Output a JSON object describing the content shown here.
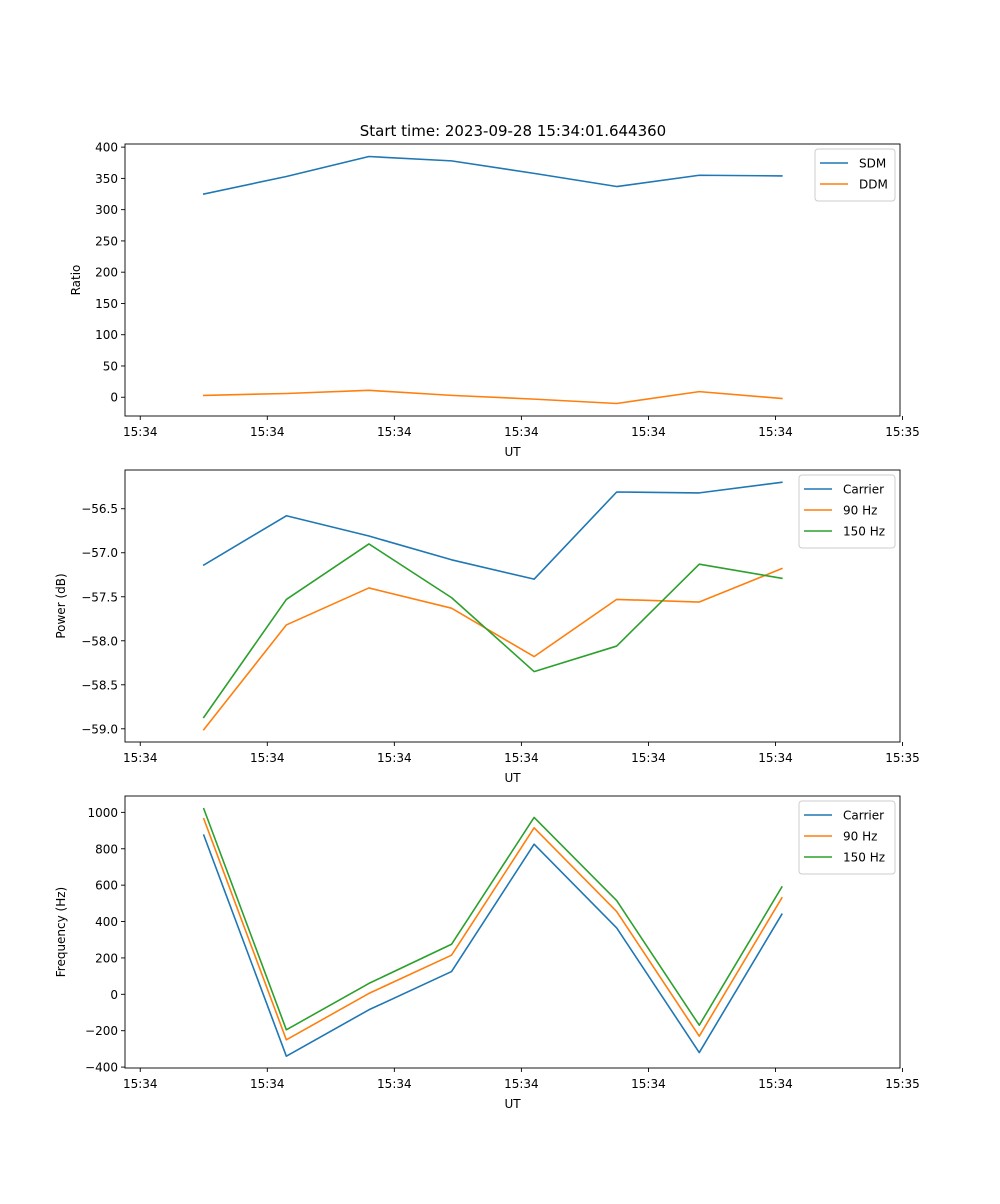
{
  "figure": {
    "title": "Start time: 2023-09-28 15:34:01.644360"
  },
  "chart_data": [
    {
      "type": "line",
      "xlabel": "UT",
      "ylabel": "Ratio",
      "x": [
        0.5,
        1.15,
        1.8,
        2.45,
        3.1,
        3.75,
        4.4,
        5.05
      ],
      "xlim": [
        -0.12,
        5.98
      ],
      "x_ticks": [
        0,
        1,
        2,
        3,
        4,
        5,
        6
      ],
      "x_tick_labels": [
        "15:34",
        "15:34",
        "15:34",
        "15:34",
        "15:34",
        "15:34",
        "15:35"
      ],
      "ylim": [
        -30,
        405
      ],
      "y_ticks": [
        0,
        50,
        100,
        150,
        200,
        250,
        300,
        350,
        400
      ],
      "y_tick_labels": [
        "0",
        "50",
        "100",
        "150",
        "200",
        "250",
        "300",
        "350",
        "400"
      ],
      "legend_position": "top-right",
      "series": [
        {
          "name": "SDM",
          "color": "#1f77b4",
          "values": [
            325,
            353,
            385,
            378,
            358,
            337,
            355,
            354
          ]
        },
        {
          "name": "DDM",
          "color": "#ff7f0e",
          "values": [
            3,
            6,
            11,
            3,
            -3,
            -10,
            9,
            -2
          ]
        }
      ]
    },
    {
      "type": "line",
      "xlabel": "UT",
      "ylabel": "Power (dB)",
      "x": [
        0.5,
        1.15,
        1.8,
        2.45,
        3.1,
        3.75,
        4.4,
        5.05
      ],
      "xlim": [
        -0.12,
        5.98
      ],
      "x_ticks": [
        0,
        1,
        2,
        3,
        4,
        5,
        6
      ],
      "x_tick_labels": [
        "15:34",
        "15:34",
        "15:34",
        "15:34",
        "15:34",
        "15:34",
        "15:35"
      ],
      "ylim": [
        -59.15,
        -56.06
      ],
      "y_ticks": [
        -59.0,
        -58.5,
        -58.0,
        -57.5,
        -57.0,
        -56.5
      ],
      "y_tick_labels": [
        "−59.0",
        "−58.5",
        "−58.0",
        "−57.5",
        "−57.0",
        "−56.5"
      ],
      "legend_position": "top-right",
      "series": [
        {
          "name": "Carrier",
          "color": "#1f77b4",
          "values": [
            -57.14,
            -56.58,
            -56.81,
            -57.08,
            -57.3,
            -56.31,
            -56.32,
            -56.2
          ]
        },
        {
          "name": "90 Hz",
          "color": "#ff7f0e",
          "values": [
            -59.01,
            -57.82,
            -57.4,
            -57.63,
            -58.18,
            -57.53,
            -57.56,
            -57.18
          ]
        },
        {
          "name": "150 Hz",
          "color": "#2ca02c",
          "values": [
            -58.87,
            -57.53,
            -56.9,
            -57.51,
            -58.35,
            -58.06,
            -57.13,
            -57.29
          ]
        }
      ]
    },
    {
      "type": "line",
      "xlabel": "UT",
      "ylabel": "Frequency (Hz)",
      "x": [
        0.5,
        1.15,
        1.8,
        2.45,
        3.1,
        3.75,
        4.4,
        5.05
      ],
      "xlim": [
        -0.12,
        5.98
      ],
      "x_ticks": [
        0,
        1,
        2,
        3,
        4,
        5,
        6
      ],
      "x_tick_labels": [
        "15:34",
        "15:34",
        "15:34",
        "15:34",
        "15:34",
        "15:34",
        "15:35"
      ],
      "ylim": [
        -405,
        1090
      ],
      "y_ticks": [
        -400,
        -200,
        0,
        200,
        400,
        600,
        800,
        1000
      ],
      "y_tick_labels": [
        "−400",
        "−200",
        "0",
        "200",
        "400",
        "600",
        "800",
        "1000"
      ],
      "legend_position": "top-right",
      "series": [
        {
          "name": "Carrier",
          "color": "#1f77b4",
          "values": [
            875,
            -340,
            -85,
            125,
            825,
            365,
            -320,
            440
          ]
        },
        {
          "name": "90 Hz",
          "color": "#ff7f0e",
          "values": [
            965,
            -250,
            5,
            215,
            915,
            455,
            -230,
            530
          ]
        },
        {
          "name": "150 Hz",
          "color": "#2ca02c",
          "values": [
            1020,
            -195,
            60,
            275,
            972,
            515,
            -170,
            590
          ]
        }
      ]
    }
  ]
}
